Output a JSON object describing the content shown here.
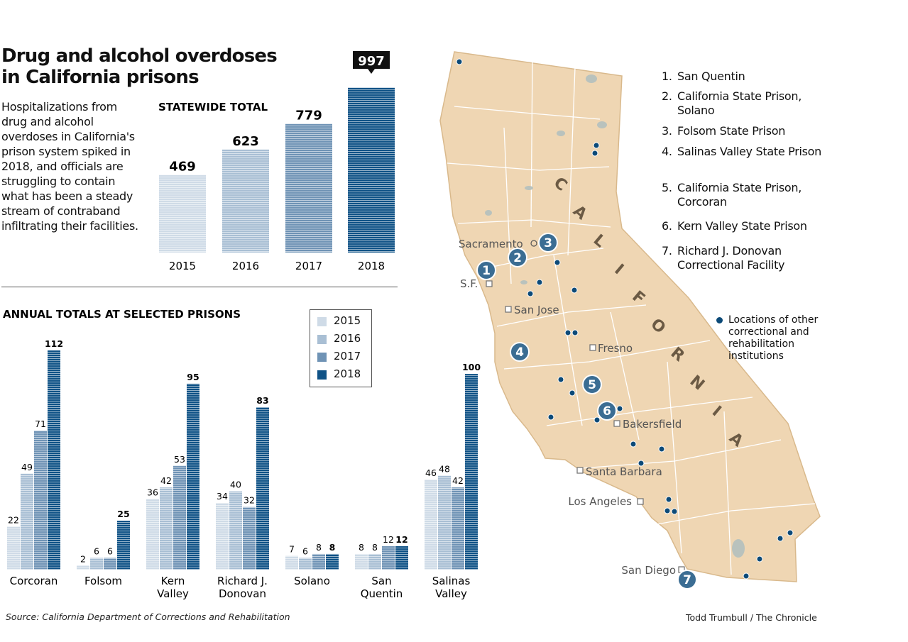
{
  "header": {
    "title_line1": "Drug and alcohol overdoses",
    "title_line2": "in California prisons",
    "description": "Hospitalizations from drug and alcohol overdoses in California's prison system spiked in 2018, and officials are struggling to contain what has been a steady stream of contraband infiltrating their facilities."
  },
  "colors": {
    "2015": "#cfdbe7",
    "2016": "#a9bfd4",
    "2017": "#6f93b5",
    "2018": "#0f5286",
    "map_land": "#efd6b3",
    "map_border": "#ffffff",
    "marker": "#3b6d93",
    "dot": "#0c4a78"
  },
  "chart_data": [
    {
      "type": "bar",
      "title": "STATEWIDE TOTAL",
      "categories": [
        "2015",
        "2016",
        "2017",
        "2018"
      ],
      "values": [
        469,
        623,
        779,
        997
      ],
      "highlight": "2018",
      "ylim": [
        0,
        1000
      ],
      "grid": false
    },
    {
      "type": "bar",
      "title": "ANNUAL TOTALS AT SELECTED PRISONS",
      "categories": [
        "Corcoran",
        "Folsom",
        "Kern Valley",
        "Richard J. Donovan",
        "Solano",
        "San Quentin",
        "Salinas Valley"
      ],
      "category_lines": [
        [
          "Corcoran"
        ],
        [
          "Folsom"
        ],
        [
          "Kern",
          "Valley"
        ],
        [
          "Richard J.",
          "Donovan"
        ],
        [
          "Solano"
        ],
        [
          "San",
          "Quentin"
        ],
        [
          "Salinas",
          "Valley"
        ]
      ],
      "series": [
        {
          "name": "2015",
          "values": [
            22,
            2,
            36,
            34,
            7,
            8,
            46
          ]
        },
        {
          "name": "2016",
          "values": [
            49,
            6,
            42,
            40,
            6,
            8,
            48
          ]
        },
        {
          "name": "2017",
          "values": [
            71,
            6,
            53,
            32,
            8,
            12,
            42
          ]
        },
        {
          "name": "2018",
          "values": [
            112,
            25,
            95,
            83,
            8,
            12,
            100
          ]
        }
      ],
      "legend_position": "top-right",
      "ylim": [
        0,
        112
      ],
      "grid": false
    }
  ],
  "legend": {
    "items": [
      "2015",
      "2016",
      "2017",
      "2018"
    ]
  },
  "map": {
    "state_label": "CALIFORNIA",
    "cities": [
      "Sacramento",
      "S.F.",
      "San Jose",
      "Fresno",
      "Bakersfield",
      "Santa Barbara",
      "Los Angeles",
      "San Diego"
    ],
    "markers": [
      "1",
      "2",
      "3",
      "4",
      "5",
      "6",
      "7"
    ],
    "prisons": [
      {
        "num": "1.",
        "name": "San Quentin"
      },
      {
        "num": "2.",
        "name": "California State Prison, Solano"
      },
      {
        "num": "3.",
        "name": "Folsom State Prison"
      },
      {
        "num": "4.",
        "name": "Salinas Valley State Prison"
      },
      {
        "num": "5.",
        "name": "California State Prison, Corcoran"
      },
      {
        "num": "6.",
        "name": "Kern Valley State Prison"
      },
      {
        "num": "7.",
        "name": "Richard J. Donovan Correctional Facility"
      }
    ],
    "dot_legend": "Locations of other correctional and rehabilitation institutions"
  },
  "footer": {
    "source": "Source: California Department of Corrections and Rehabilitation",
    "credit": "Todd Trumbull / The Chronicle"
  }
}
